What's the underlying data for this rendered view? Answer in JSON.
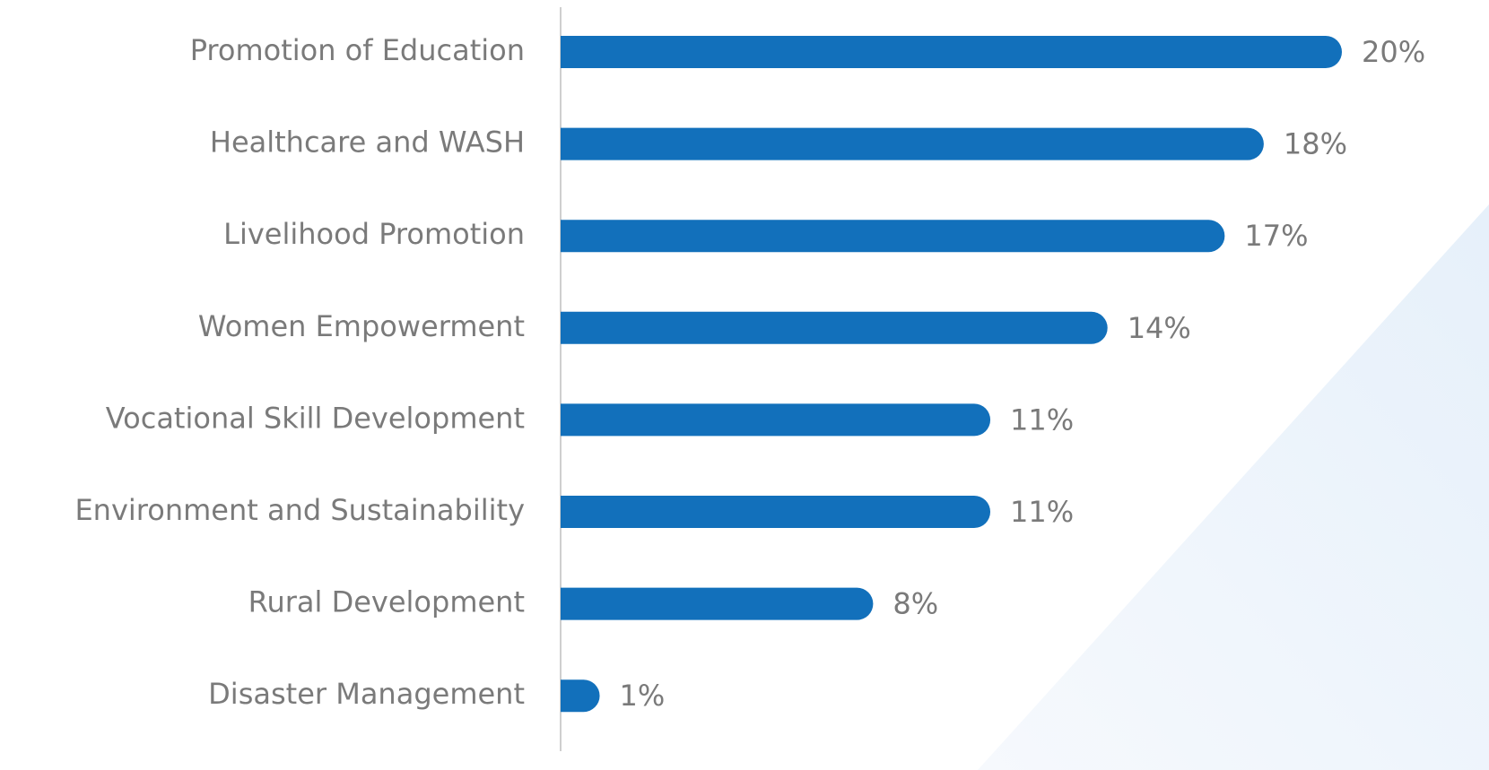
{
  "chart_data": {
    "type": "bar",
    "orientation": "horizontal",
    "categories": [
      "Promotion of Education",
      "Healthcare and WASH",
      "Livelihood Promotion",
      "Women Empowerment",
      "Vocational Skill Development",
      "Environment and Sustainability",
      "Rural Development",
      "Disaster Management"
    ],
    "values": [
      20,
      18,
      17,
      14,
      11,
      11,
      8,
      1
    ],
    "value_labels": [
      "20%",
      "18%",
      "17%",
      "14%",
      "11%",
      "11%",
      "8%",
      "1%"
    ],
    "color": "#1270bb"
  }
}
